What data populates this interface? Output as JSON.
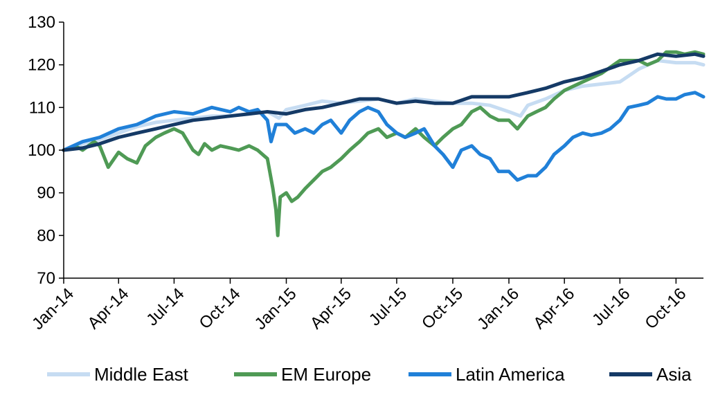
{
  "chart_data": {
    "type": "line",
    "title": "",
    "xlabel": "",
    "ylabel": "",
    "ylim": [
      70,
      130
    ],
    "yticks": [
      70,
      80,
      90,
      100,
      110,
      120,
      130
    ],
    "xlim": [
      "2014-01-01",
      "2016-11-15"
    ],
    "xtick_labels": [
      "Jan-14",
      "Apr-14",
      "Jul-14",
      "Oct-14",
      "Jan-15",
      "Apr-15",
      "Jul-15",
      "Oct-15",
      "Jan-16",
      "Apr-16",
      "Jul-16",
      "Oct-16"
    ],
    "xtick_dates": [
      "2014-01-01",
      "2014-04-01",
      "2014-07-01",
      "2014-10-01",
      "2015-01-01",
      "2015-04-01",
      "2015-07-01",
      "2015-10-01",
      "2016-01-01",
      "2016-04-01",
      "2016-07-01",
      "2016-10-01"
    ],
    "grid": false,
    "legend_position": "bottom",
    "series": [
      {
        "name": "Middle East",
        "color": "#c6dcf2",
        "points": [
          [
            "2014-01-01",
            100
          ],
          [
            "2014-02-01",
            101.5
          ],
          [
            "2014-03-01",
            102.5
          ],
          [
            "2014-04-01",
            104
          ],
          [
            "2014-05-01",
            105.5
          ],
          [
            "2014-06-01",
            106.5
          ],
          [
            "2014-07-01",
            107
          ],
          [
            "2014-08-01",
            107.5
          ],
          [
            "2014-09-01",
            108
          ],
          [
            "2014-10-01",
            108
          ],
          [
            "2014-11-01",
            108.5
          ],
          [
            "2014-12-01",
            109
          ],
          [
            "2014-12-20",
            107.5
          ],
          [
            "2015-01-01",
            109.5
          ],
          [
            "2015-02-01",
            110.5
          ],
          [
            "2015-03-01",
            111.5
          ],
          [
            "2015-04-01",
            111
          ],
          [
            "2015-05-01",
            111.5
          ],
          [
            "2015-06-01",
            112
          ],
          [
            "2015-07-01",
            111
          ],
          [
            "2015-08-01",
            112
          ],
          [
            "2015-09-01",
            111.5
          ],
          [
            "2015-10-01",
            111
          ],
          [
            "2015-11-01",
            111
          ],
          [
            "2015-12-01",
            110.5
          ],
          [
            "2016-01-01",
            109
          ],
          [
            "2016-01-20",
            108
          ],
          [
            "2016-02-01",
            110.5
          ],
          [
            "2016-03-01",
            112
          ],
          [
            "2016-04-01",
            114
          ],
          [
            "2016-05-01",
            115
          ],
          [
            "2016-06-01",
            115.5
          ],
          [
            "2016-07-01",
            116
          ],
          [
            "2016-08-01",
            119
          ],
          [
            "2016-09-01",
            121
          ],
          [
            "2016-10-01",
            120.5
          ],
          [
            "2016-11-01",
            120.5
          ],
          [
            "2016-11-15",
            120
          ]
        ]
      },
      {
        "name": "EM Europe",
        "color": "#4f9a55",
        "points": [
          [
            "2014-01-01",
            100
          ],
          [
            "2014-01-20",
            101
          ],
          [
            "2014-02-01",
            100
          ],
          [
            "2014-02-20",
            102
          ],
          [
            "2014-03-01",
            101
          ],
          [
            "2014-03-15",
            96
          ],
          [
            "2014-04-01",
            99.5
          ],
          [
            "2014-04-15",
            98
          ],
          [
            "2014-05-01",
            97
          ],
          [
            "2014-05-15",
            101
          ],
          [
            "2014-06-01",
            103
          ],
          [
            "2014-06-15",
            104
          ],
          [
            "2014-07-01",
            105
          ],
          [
            "2014-07-15",
            104
          ],
          [
            "2014-08-01",
            100
          ],
          [
            "2014-08-10",
            99
          ],
          [
            "2014-08-20",
            101.5
          ],
          [
            "2014-09-01",
            100
          ],
          [
            "2014-09-15",
            101
          ],
          [
            "2014-10-01",
            100.5
          ],
          [
            "2014-10-15",
            100
          ],
          [
            "2014-11-01",
            101
          ],
          [
            "2014-11-15",
            100
          ],
          [
            "2014-12-01",
            98
          ],
          [
            "2014-12-10",
            91
          ],
          [
            "2014-12-15",
            86
          ],
          [
            "2014-12-18",
            80
          ],
          [
            "2014-12-22",
            89
          ],
          [
            "2015-01-01",
            90
          ],
          [
            "2015-01-10",
            88
          ],
          [
            "2015-01-20",
            89
          ],
          [
            "2015-02-01",
            91
          ],
          [
            "2015-02-15",
            93
          ],
          [
            "2015-03-01",
            95
          ],
          [
            "2015-03-15",
            96
          ],
          [
            "2015-04-01",
            98
          ],
          [
            "2015-04-15",
            100
          ],
          [
            "2015-05-01",
            102
          ],
          [
            "2015-05-15",
            104
          ],
          [
            "2015-06-01",
            105
          ],
          [
            "2015-06-15",
            103
          ],
          [
            "2015-07-01",
            104
          ],
          [
            "2015-07-15",
            103
          ],
          [
            "2015-08-01",
            105
          ],
          [
            "2015-08-15",
            103
          ],
          [
            "2015-09-01",
            101
          ],
          [
            "2015-09-15",
            103
          ],
          [
            "2015-10-01",
            105
          ],
          [
            "2015-10-15",
            106
          ],
          [
            "2015-11-01",
            109
          ],
          [
            "2015-11-15",
            110
          ],
          [
            "2015-12-01",
            108
          ],
          [
            "2015-12-15",
            107
          ],
          [
            "2016-01-01",
            107
          ],
          [
            "2016-01-15",
            105
          ],
          [
            "2016-02-01",
            108
          ],
          [
            "2016-02-15",
            109
          ],
          [
            "2016-03-01",
            110
          ],
          [
            "2016-03-15",
            112
          ],
          [
            "2016-04-01",
            114
          ],
          [
            "2016-05-01",
            116
          ],
          [
            "2016-06-01",
            118
          ],
          [
            "2016-07-01",
            121
          ],
          [
            "2016-08-01",
            121
          ],
          [
            "2016-08-15",
            120
          ],
          [
            "2016-09-01",
            121
          ],
          [
            "2016-09-15",
            123
          ],
          [
            "2016-10-01",
            123
          ],
          [
            "2016-10-15",
            122.5
          ],
          [
            "2016-11-01",
            123
          ],
          [
            "2016-11-15",
            122.5
          ]
        ]
      },
      {
        "name": "Latin America",
        "color": "#2080d8",
        "points": [
          [
            "2014-01-01",
            100
          ],
          [
            "2014-02-01",
            102
          ],
          [
            "2014-03-01",
            103
          ],
          [
            "2014-04-01",
            105
          ],
          [
            "2014-05-01",
            106
          ],
          [
            "2014-06-01",
            108
          ],
          [
            "2014-07-01",
            109
          ],
          [
            "2014-08-01",
            108.5
          ],
          [
            "2014-09-01",
            110
          ],
          [
            "2014-10-01",
            109
          ],
          [
            "2014-10-15",
            110
          ],
          [
            "2014-11-01",
            109
          ],
          [
            "2014-11-15",
            109.5
          ],
          [
            "2014-12-01",
            107
          ],
          [
            "2014-12-07",
            102
          ],
          [
            "2014-12-15",
            106
          ],
          [
            "2015-01-01",
            106
          ],
          [
            "2015-01-15",
            104
          ],
          [
            "2015-02-01",
            105
          ],
          [
            "2015-02-15",
            104
          ],
          [
            "2015-03-01",
            106
          ],
          [
            "2015-03-15",
            107
          ],
          [
            "2015-04-01",
            104
          ],
          [
            "2015-04-15",
            107
          ],
          [
            "2015-05-01",
            109
          ],
          [
            "2015-05-15",
            110
          ],
          [
            "2015-06-01",
            109
          ],
          [
            "2015-06-15",
            106
          ],
          [
            "2015-07-01",
            104
          ],
          [
            "2015-07-15",
            103
          ],
          [
            "2015-08-01",
            104
          ],
          [
            "2015-08-15",
            105
          ],
          [
            "2015-09-01",
            101
          ],
          [
            "2015-09-15",
            99
          ],
          [
            "2015-10-01",
            96
          ],
          [
            "2015-10-15",
            100
          ],
          [
            "2015-11-01",
            101
          ],
          [
            "2015-11-15",
            99
          ],
          [
            "2015-12-01",
            98
          ],
          [
            "2015-12-15",
            95
          ],
          [
            "2016-01-01",
            95
          ],
          [
            "2016-01-15",
            93
          ],
          [
            "2016-02-01",
            94
          ],
          [
            "2016-02-15",
            94
          ],
          [
            "2016-03-01",
            96
          ],
          [
            "2016-03-15",
            99
          ],
          [
            "2016-04-01",
            101
          ],
          [
            "2016-04-15",
            103
          ],
          [
            "2016-05-01",
            104
          ],
          [
            "2016-05-15",
            103.5
          ],
          [
            "2016-06-01",
            104
          ],
          [
            "2016-06-15",
            105
          ],
          [
            "2016-07-01",
            107
          ],
          [
            "2016-07-15",
            110
          ],
          [
            "2016-08-01",
            110.5
          ],
          [
            "2016-08-15",
            111
          ],
          [
            "2016-09-01",
            112.5
          ],
          [
            "2016-09-15",
            112
          ],
          [
            "2016-10-01",
            112
          ],
          [
            "2016-10-15",
            113
          ],
          [
            "2016-11-01",
            113.5
          ],
          [
            "2016-11-15",
            112.5
          ]
        ]
      },
      {
        "name": "Asia",
        "color": "#153a66",
        "points": [
          [
            "2014-01-01",
            100
          ],
          [
            "2014-02-01",
            100.5
          ],
          [
            "2014-03-01",
            101.5
          ],
          [
            "2014-04-01",
            103
          ],
          [
            "2014-05-01",
            104
          ],
          [
            "2014-06-01",
            105
          ],
          [
            "2014-07-01",
            106
          ],
          [
            "2014-08-01",
            107
          ],
          [
            "2014-09-01",
            107.5
          ],
          [
            "2014-10-01",
            108
          ],
          [
            "2014-11-01",
            108.5
          ],
          [
            "2014-12-01",
            109
          ],
          [
            "2015-01-01",
            108.5
          ],
          [
            "2015-02-01",
            109.5
          ],
          [
            "2015-03-01",
            110
          ],
          [
            "2015-04-01",
            111
          ],
          [
            "2015-05-01",
            112
          ],
          [
            "2015-06-01",
            112
          ],
          [
            "2015-07-01",
            111
          ],
          [
            "2015-08-01",
            111.5
          ],
          [
            "2015-09-01",
            111
          ],
          [
            "2015-10-01",
            111
          ],
          [
            "2015-11-01",
            112.5
          ],
          [
            "2015-12-01",
            112.5
          ],
          [
            "2016-01-01",
            112.5
          ],
          [
            "2016-02-01",
            113.5
          ],
          [
            "2016-03-01",
            114.5
          ],
          [
            "2016-04-01",
            116
          ],
          [
            "2016-05-01",
            117
          ],
          [
            "2016-06-01",
            118.5
          ],
          [
            "2016-07-01",
            120
          ],
          [
            "2016-08-01",
            121
          ],
          [
            "2016-09-01",
            122.5
          ],
          [
            "2016-10-01",
            122
          ],
          [
            "2016-11-01",
            122.5
          ],
          [
            "2016-11-15",
            122
          ]
        ]
      }
    ]
  }
}
